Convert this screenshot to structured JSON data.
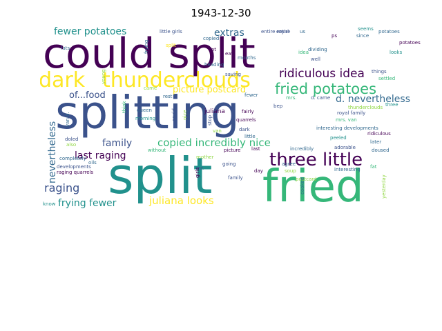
{
  "title": "1943-12-30",
  "palette": {
    "dark_purple": "#440154",
    "indigo": "#3b528b",
    "blue": "#31688e",
    "teal": "#21918c",
    "green": "#35b779",
    "lime": "#90d743",
    "yellow": "#fde725"
  },
  "words": [
    "could split",
    "splitting",
    "split",
    "fried",
    "dark",
    "thunderclouds",
    "fried potatoes",
    "three little",
    "ridiculous idea",
    "fewer potatoes",
    "extras",
    "of...food",
    "d. nevertheless",
    "family",
    "copied incredibly nice",
    "last raging",
    "raging",
    "nevertheless",
    "frying fewer",
    "juliana looks",
    "picture postcard",
    "little girls",
    "entire royal",
    "seems",
    "potatoes",
    "since",
    "ps",
    "us",
    "dividing",
    "looks",
    "idea",
    "well",
    "frying",
    "copied",
    "lot",
    "eat",
    "months",
    "heading",
    "saving",
    "fats",
    "young",
    "settled",
    "things",
    "queen",
    "morning",
    "juliana",
    "fairly",
    "quarrels",
    "dark",
    "stop",
    "van",
    "thunderclouds",
    "three",
    "royal family",
    "mrs. van",
    "interesting developments",
    "peeled",
    "ridiculous",
    "adorable",
    "later",
    "doused",
    "doled",
    "also",
    "van d.",
    "without",
    "completely",
    "oils",
    "developments",
    "raging quarrels",
    "mother",
    "going",
    "family",
    "day",
    "agree",
    "soup",
    "fat",
    "interesting",
    "know",
    "picture",
    "mr.",
    "girls",
    "last",
    "incredibly",
    "postcard",
    "bep",
    "entire",
    "rest",
    "came",
    "d. came",
    "mrs.",
    "fewer",
    "little",
    "think",
    "nice",
    "could",
    "potatoes",
    "split",
    "yesterday",
    "cooked"
  ]
}
